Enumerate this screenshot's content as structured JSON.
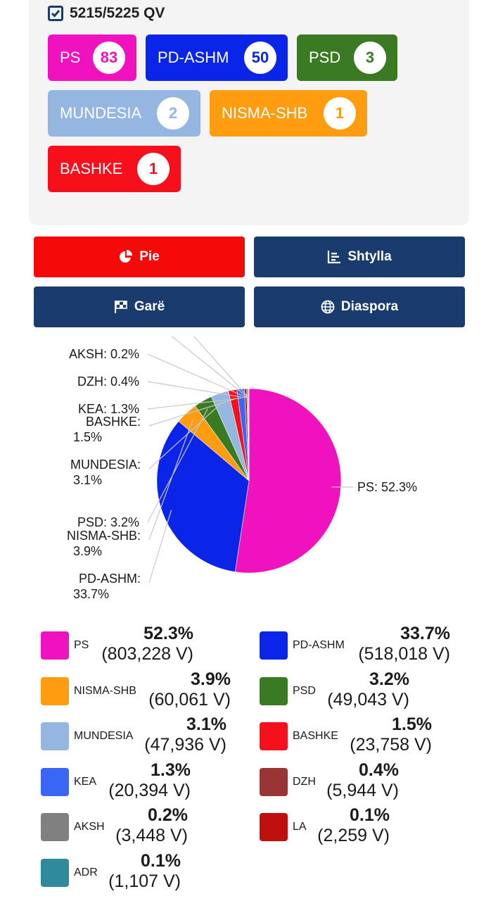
{
  "summary": {
    "qv_label": "5215/5225 QV"
  },
  "seats": [
    {
      "party": "PS",
      "seats": "83",
      "color": "#f012be"
    },
    {
      "party": "PD-ASHM",
      "seats": "50",
      "color": "#0a24e8"
    },
    {
      "party": "PSD",
      "seats": "3",
      "color": "#3a7a23"
    },
    {
      "party": "MUNDESIA",
      "seats": "2",
      "color": "#94b6e0"
    },
    {
      "party": "NISMA-SHB",
      "seats": "1",
      "color": "#ff9c10"
    },
    {
      "party": "BASHKE",
      "seats": "1",
      "color": "#f5101c"
    }
  ],
  "views": {
    "pie": "Pie",
    "bar": "Shtylla",
    "race": "Garë",
    "diaspora": "Diaspora",
    "active_color": "#f50a0a",
    "inactive_color": "#1a3b6e"
  },
  "chart_data": {
    "type": "pie",
    "slices": [
      {
        "label": "PS",
        "percent": 52.3,
        "votes": 803228,
        "label_text": "PS: 52.3%",
        "color": "#f012be"
      },
      {
        "label": "PD-ASHM",
        "percent": 33.7,
        "votes": 518018,
        "label_text": "PD-ASHM: 33.7%",
        "color": "#0a24e8"
      },
      {
        "label": "NISMA-SHB",
        "percent": 3.9,
        "votes": 60061,
        "label_text": "NISMA-SHB: 3.9%",
        "color": "#ff9c10"
      },
      {
        "label": "PSD",
        "percent": 3.2,
        "votes": 49043,
        "label_text": "PSD: 3.2%",
        "color": "#3a7a23"
      },
      {
        "label": "MUNDESIA",
        "percent": 3.1,
        "votes": 47936,
        "label_text": "MUNDESIA: 3.1%",
        "color": "#94b6e0"
      },
      {
        "label": "BASHKE",
        "percent": 1.5,
        "votes": 23758,
        "label_text": "BASHKE: 1.5%",
        "color": "#f5101c"
      },
      {
        "label": "KEA",
        "percent": 1.3,
        "votes": 20394,
        "label_text": "KEA: 1.3%",
        "color": "#3a66f5"
      },
      {
        "label": "DZH",
        "percent": 0.4,
        "votes": 5944,
        "label_text": "DZH: 0.4%",
        "color": "#9a3535"
      },
      {
        "label": "AKSH",
        "percent": 0.2,
        "votes": 3448,
        "label_text": "AKSH: 0.2%",
        "color": "#808080"
      },
      {
        "label": "LA",
        "percent": 0.1,
        "votes": 2259,
        "label_text": "",
        "color": "#c00f0f"
      },
      {
        "label": "ADR",
        "percent": 0.1,
        "votes": 1107,
        "label_text": "",
        "color": "#2e8a9c"
      }
    ]
  },
  "legend": [
    {
      "name": "PS",
      "pct": "52.3%",
      "votes": "(803,228 V)",
      "color": "#f012be"
    },
    {
      "name": "PD-ASHM",
      "pct": "33.7%",
      "votes": "(518,018 V)",
      "color": "#0a24e8"
    },
    {
      "name": "NISMA-SHB",
      "pct": "3.9%",
      "votes": "(60,061 V)",
      "color": "#ff9c10"
    },
    {
      "name": "PSD",
      "pct": "3.2%",
      "votes": "(49,043 V)",
      "color": "#3a7a23"
    },
    {
      "name": "MUNDESIA",
      "pct": "3.1%",
      "votes": "(47,936 V)",
      "color": "#94b6e0"
    },
    {
      "name": "BASHKE",
      "pct": "1.5%",
      "votes": "(23,758 V)",
      "color": "#f5101c"
    },
    {
      "name": "KEA",
      "pct": "1.3%",
      "votes": "(20,394 V)",
      "color": "#3a66f5"
    },
    {
      "name": "DZH",
      "pct": "0.4%",
      "votes": "(5,944 V)",
      "color": "#9a3535"
    },
    {
      "name": "AKSH",
      "pct": "0.2%",
      "votes": "(3,448 V)",
      "color": "#808080"
    },
    {
      "name": "LA",
      "pct": "0.1%",
      "votes": "(2,259 V)",
      "color": "#c00f0f"
    },
    {
      "name": "ADR",
      "pct": "0.1%",
      "votes": "(1,107 V)",
      "color": "#2e8a9c"
    }
  ]
}
